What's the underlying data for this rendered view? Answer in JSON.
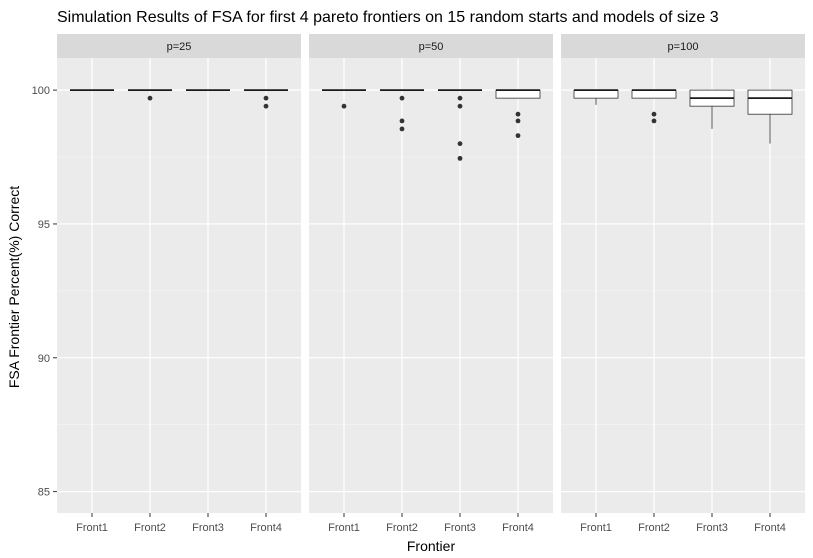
{
  "chart_data": {
    "type": "boxplot",
    "title": "Simulation Results of FSA for first 4 pareto frontiers on 15 random starts and models of size 3",
    "xlabel": "Frontier",
    "ylabel": "FSA Frontier Percent(%) Correct",
    "ylim": [
      84.2,
      101.2
    ],
    "yticks": [
      85,
      90,
      95,
      100
    ],
    "grid": true,
    "categories": [
      "Front1",
      "Front2",
      "Front3",
      "Front4"
    ],
    "panels": [
      {
        "label": "p=25",
        "boxes": [
          {
            "category": "Front1",
            "min": 100,
            "q1": 100,
            "median": 100,
            "q3": 100,
            "max": 100,
            "outliers": []
          },
          {
            "category": "Front2",
            "min": 100,
            "q1": 100,
            "median": 100,
            "q3": 100,
            "max": 100,
            "outliers": [
              99.7
            ]
          },
          {
            "category": "Front3",
            "min": 100,
            "q1": 100,
            "median": 100,
            "q3": 100,
            "max": 100,
            "outliers": []
          },
          {
            "category": "Front4",
            "min": 100,
            "q1": 100,
            "median": 100,
            "q3": 100,
            "max": 100,
            "outliers": [
              99.7,
              99.4
            ]
          }
        ]
      },
      {
        "label": "p=50",
        "boxes": [
          {
            "category": "Front1",
            "min": 100,
            "q1": 100,
            "median": 100,
            "q3": 100,
            "max": 100,
            "outliers": [
              99.4
            ]
          },
          {
            "category": "Front2",
            "min": 100,
            "q1": 100,
            "median": 100,
            "q3": 100,
            "max": 100,
            "outliers": [
              99.7,
              98.85,
              98.55
            ]
          },
          {
            "category": "Front3",
            "min": 100,
            "q1": 100,
            "median": 100,
            "q3": 100,
            "max": 100,
            "outliers": [
              99.7,
              99.4,
              98.0,
              97.45
            ]
          },
          {
            "category": "Front4",
            "min": 99.7,
            "q1": 99.7,
            "median": 100,
            "q3": 100,
            "max": 100,
            "outliers": [
              99.1,
              98.85,
              98.3
            ]
          }
        ]
      },
      {
        "label": "p=100",
        "boxes": [
          {
            "category": "Front1",
            "min": 99.45,
            "q1": 99.7,
            "median": 100,
            "q3": 100,
            "max": 100,
            "outliers": []
          },
          {
            "category": "Front2",
            "min": 99.7,
            "q1": 99.7,
            "median": 100,
            "q3": 100,
            "max": 100,
            "outliers": [
              99.1,
              98.85
            ]
          },
          {
            "category": "Front3",
            "min": 98.55,
            "q1": 99.4,
            "median": 99.7,
            "q3": 100,
            "max": 100,
            "outliers": []
          },
          {
            "category": "Front4",
            "min": 98.0,
            "q1": 99.1,
            "median": 99.7,
            "q3": 100,
            "max": 100,
            "outliers": []
          }
        ]
      }
    ]
  }
}
